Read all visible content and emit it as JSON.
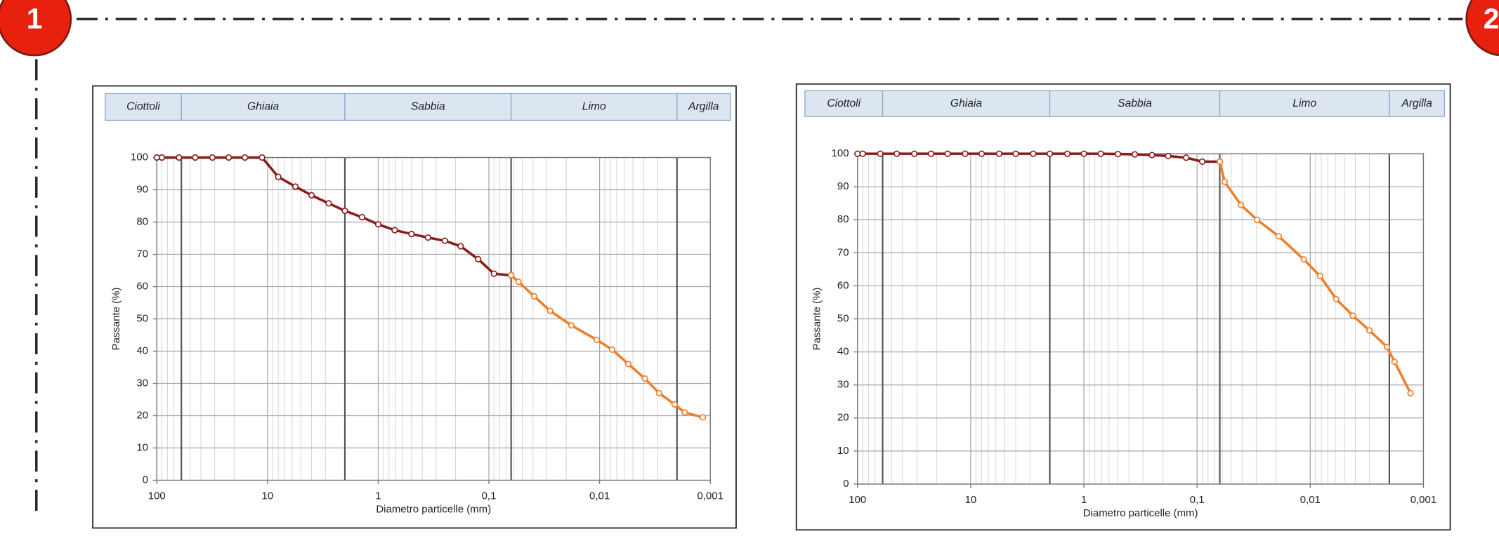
{
  "markers": [
    "1",
    "2"
  ],
  "chart_data": [
    {
      "type": "line",
      "xlabel": "Diametro particelle (mm)",
      "ylabel": "Passante (%)",
      "log_x": true,
      "grid": true,
      "zones": [
        "Ciottoli",
        "Ghiaia",
        "Sabbia",
        "Limo",
        "Argilla"
      ],
      "zone_bounds": [
        60,
        2,
        0.063,
        0.002
      ],
      "xlim": [
        100,
        0.001
      ],
      "xticks": [
        100,
        10,
        1,
        {
          "value": 0.1,
          "label": "0,1"
        },
        {
          "value": 0.01,
          "label": "0,01"
        },
        {
          "value": 0.001,
          "label": "0,001"
        }
      ],
      "ylim": [
        0,
        100
      ],
      "yticks": [
        0,
        10,
        20,
        30,
        40,
        50,
        60,
        70,
        80,
        90,
        100
      ],
      "series": [
        {
          "color": "#8b1a1a",
          "x": [
            100,
            90,
            63,
            45,
            31.5,
            22.4,
            16,
            11.2,
            8,
            5.6,
            4,
            2.8,
            2,
            1.4,
            1,
            0.71,
            0.5,
            0.355,
            0.25,
            0.18,
            0.125,
            0.09,
            0.063
          ],
          "values": [
            100,
            100,
            100,
            100,
            100,
            100,
            100,
            100,
            94,
            91,
            88.3,
            85.8,
            83.5,
            81.5,
            79.3,
            77.5,
            76.3,
            75.2,
            74.2,
            72.5,
            68.5,
            64,
            63.5
          ]
        },
        {
          "color": "#f07d2a",
          "x": [
            0.063,
            0.054,
            0.039,
            0.028,
            0.018,
            0.0106,
            0.0077,
            0.0055,
            0.0039,
            0.0029,
            0.0021,
            0.0017,
            0.00117
          ],
          "values": [
            63.5,
            61.5,
            57,
            52.5,
            48,
            43.5,
            40.5,
            36,
            31.5,
            27,
            23.5,
            21,
            19.5
          ]
        }
      ]
    },
    {
      "type": "line",
      "xlabel": "Diametro particelle (mm)",
      "ylabel": "Passante (%)",
      "log_x": true,
      "grid": true,
      "zones": [
        "Ciottoli",
        "Ghiaia",
        "Sabbia",
        "Limo",
        "Argilla"
      ],
      "zone_bounds": [
        60,
        2,
        0.063,
        0.002
      ],
      "xlim": [
        100,
        0.001
      ],
      "xticks": [
        100,
        10,
        1,
        {
          "value": 0.1,
          "label": "0,1"
        },
        {
          "value": 0.01,
          "label": "0,01"
        },
        {
          "value": 0.001,
          "label": "0,001"
        }
      ],
      "ylim": [
        0,
        100
      ],
      "yticks": [
        0,
        10,
        20,
        30,
        40,
        50,
        60,
        70,
        80,
        90,
        100
      ],
      "series": [
        {
          "color": "#8b1a1a",
          "x": [
            100,
            90,
            63,
            45,
            31.5,
            22.4,
            16,
            11.2,
            8,
            5.6,
            4,
            2.8,
            2,
            1.4,
            1,
            0.71,
            0.5,
            0.355,
            0.25,
            0.18,
            0.125,
            0.09,
            0.063
          ],
          "values": [
            100,
            100,
            100,
            100,
            100,
            100,
            100,
            100,
            100,
            100,
            100,
            100,
            100,
            100,
            100,
            100,
            99.9,
            99.8,
            99.6,
            99.3,
            98.8,
            97.6,
            97.6
          ]
        },
        {
          "color": "#f07d2a",
          "x": [
            0.063,
            0.057,
            0.041,
            0.0295,
            0.019,
            0.0114,
            0.0082,
            0.0059,
            0.0042,
            0.003,
            0.0021,
            0.0018,
            0.0013
          ],
          "values": [
            97.6,
            91.5,
            84.5,
            80,
            75,
            68,
            63,
            56,
            51,
            46.5,
            41.5,
            37,
            27.5
          ]
        }
      ]
    }
  ]
}
